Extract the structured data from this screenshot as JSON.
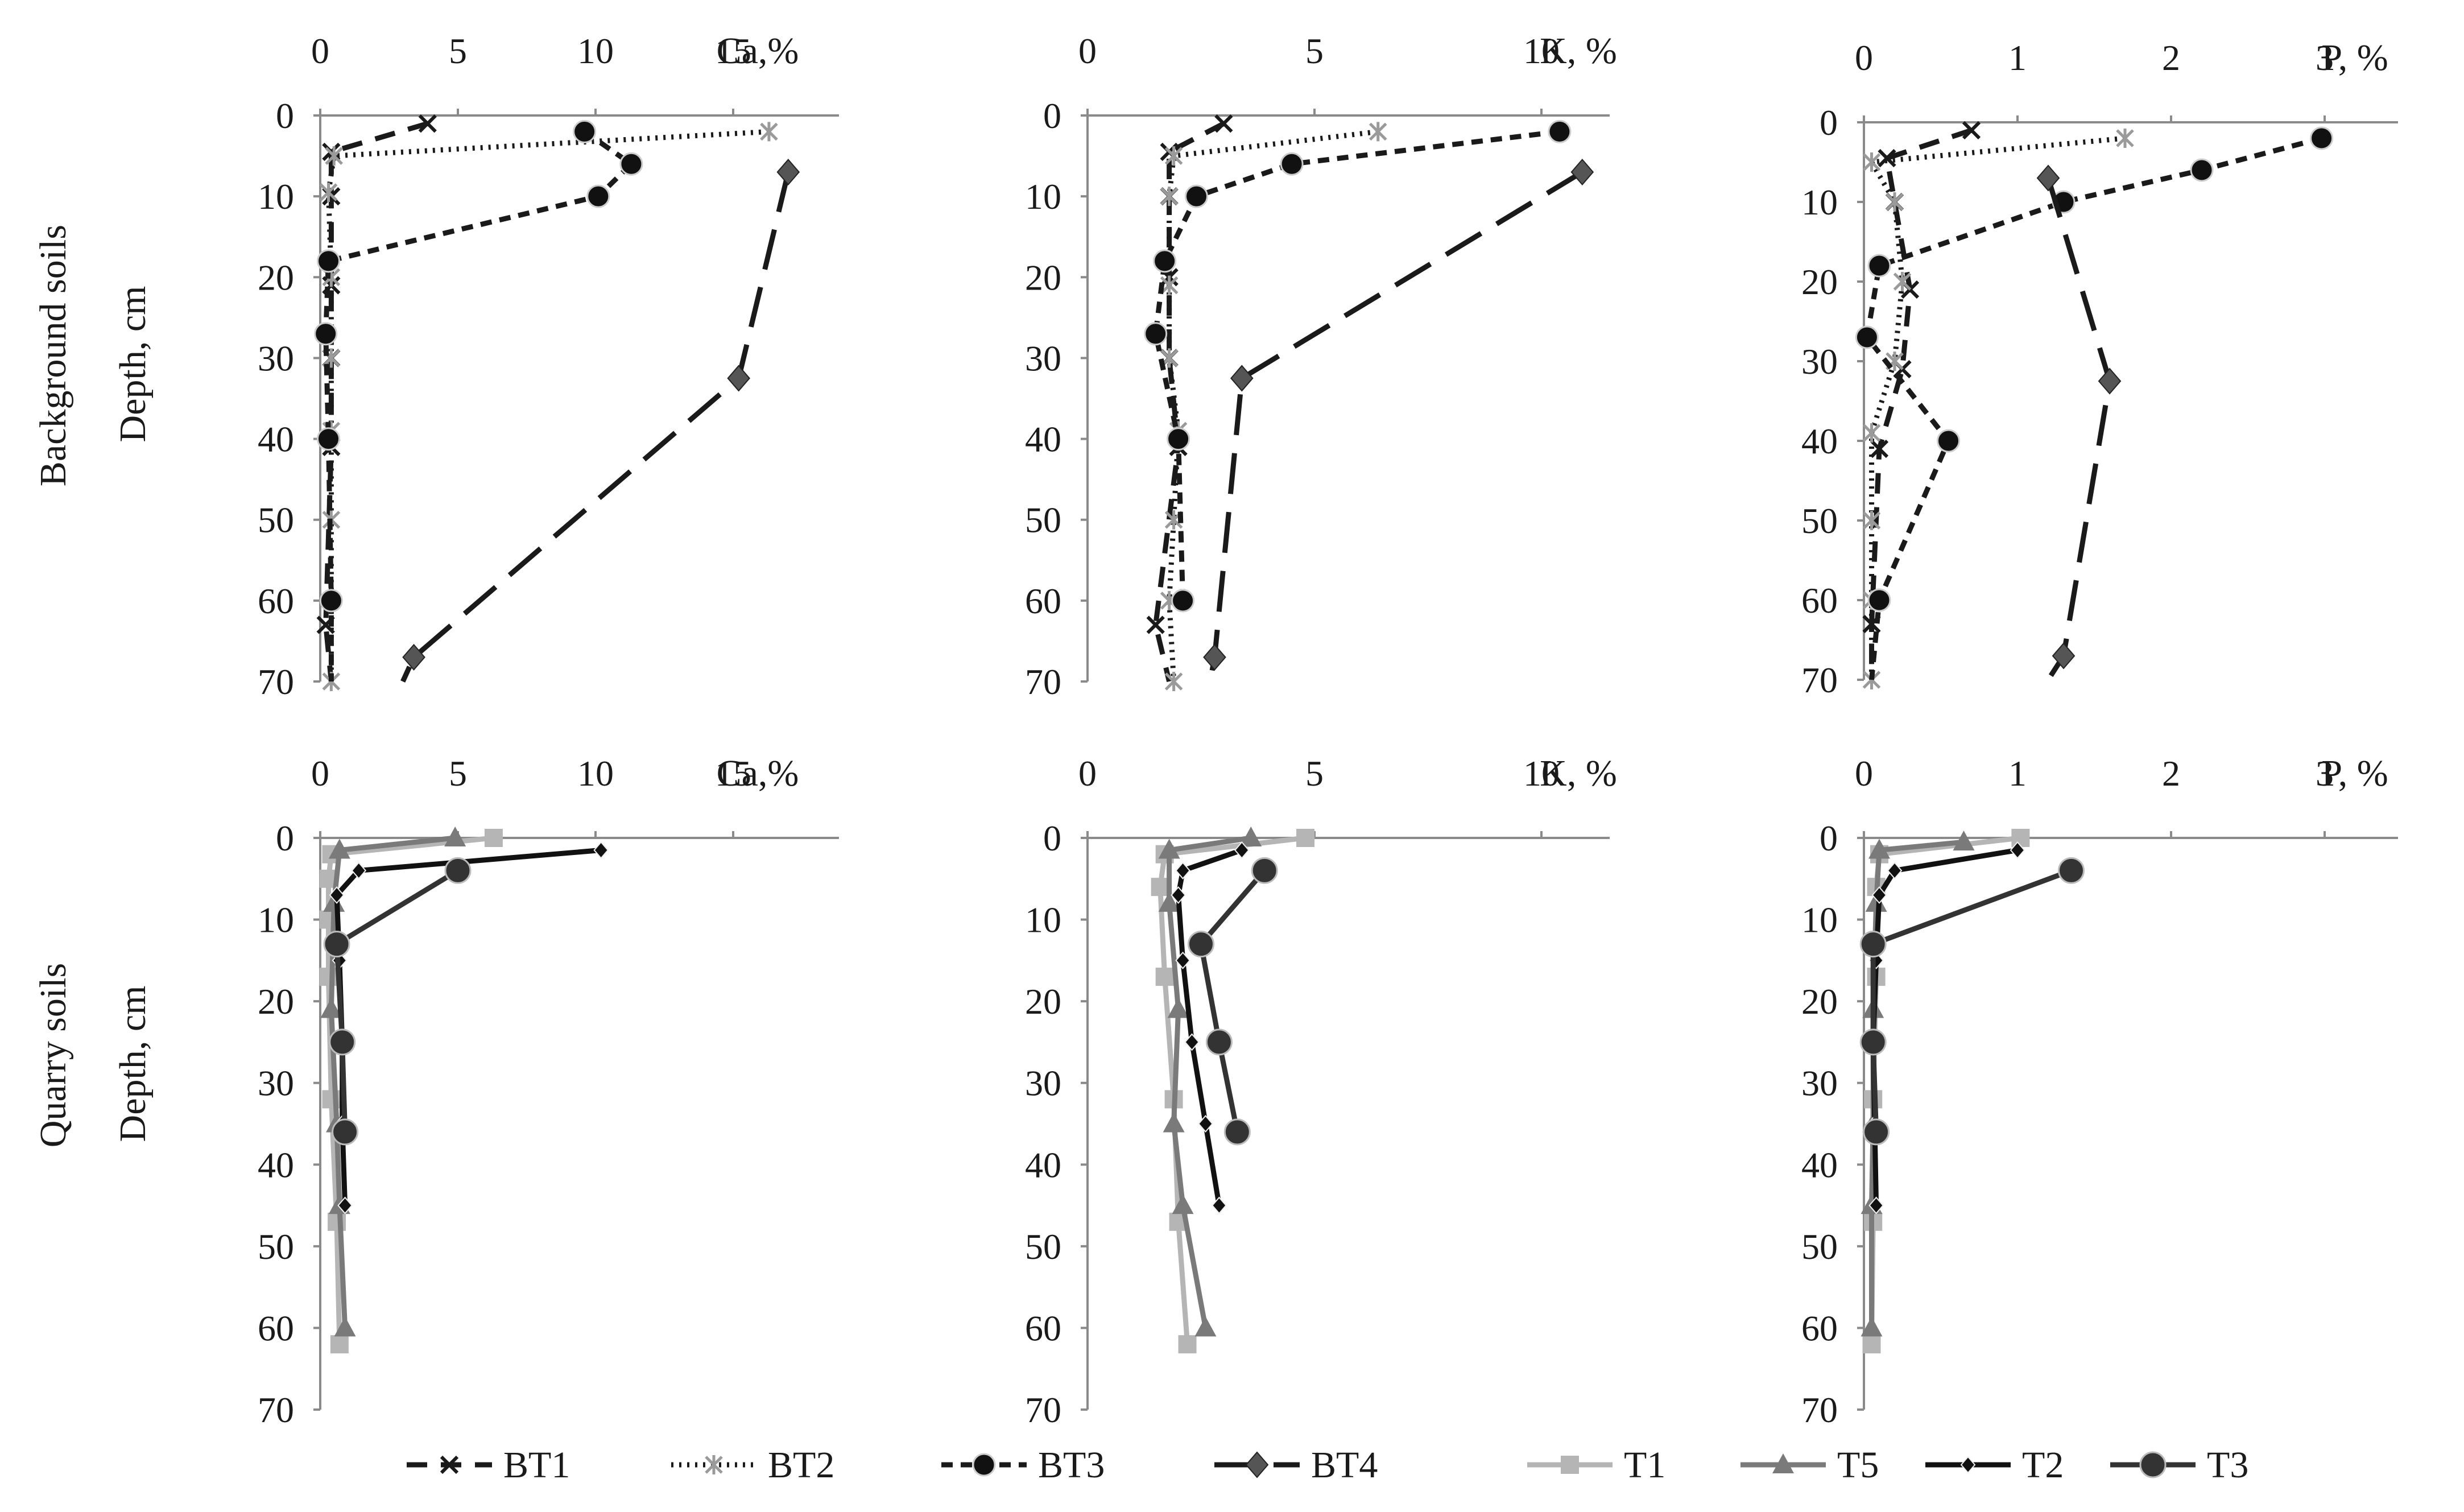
{
  "figure_type": "soil depth profiles",
  "chart_data": [
    {
      "type": "line",
      "row": "Background soils",
      "ylabel": "Depth, cm",
      "xlabel": "Ca,%",
      "xlim": [
        0,
        18
      ],
      "xticks": [
        0,
        5,
        10,
        15
      ],
      "ylim": [
        0,
        70
      ],
      "yticks": [
        0,
        10,
        20,
        30,
        40,
        50,
        60,
        70
      ],
      "series": [
        {
          "name": "BT1",
          "points": [
            [
              3.9,
              1
            ],
            [
              0.4,
              4.5
            ],
            [
              0.4,
              10
            ],
            [
              0.4,
              21
            ],
            [
              0.4,
              30
            ],
            [
              0.4,
              41
            ],
            [
              0.2,
              63
            ],
            [
              0.4,
              70
            ]
          ]
        },
        {
          "name": "BT2",
          "points": [
            [
              16.3,
              2
            ],
            [
              0.5,
              5
            ],
            [
              0.3,
              9.5
            ],
            [
              0.4,
              20
            ],
            [
              0.4,
              30
            ],
            [
              0.4,
              39
            ],
            [
              0.4,
              50
            ],
            [
              0.4,
              60
            ],
            [
              0.4,
              70
            ]
          ]
        },
        {
          "name": "BT3",
          "points": [
            [
              9.6,
              2
            ],
            [
              11.3,
              6
            ],
            [
              10.1,
              10
            ],
            [
              0.3,
              18
            ],
            [
              0.2,
              27
            ],
            [
              0.3,
              40
            ],
            [
              0.4,
              60
            ],
            [
              0.4,
              70
            ]
          ]
        },
        {
          "name": "BT4",
          "points": [
            [
              17.0,
              7
            ],
            [
              15.2,
              32.5
            ],
            [
              3.4,
              67
            ],
            [
              3.0,
              70
            ]
          ]
        }
      ]
    },
    {
      "type": "line",
      "row": "Background soils",
      "ylabel": "Depth, cm",
      "xlabel": "K, %",
      "xlim": [
        0,
        11.5
      ],
      "xticks": [
        0,
        5,
        10
      ],
      "ylim": [
        0,
        70
      ],
      "yticks": [
        0,
        10,
        20,
        30,
        40,
        50,
        60,
        70
      ],
      "series": [
        {
          "name": "BT1",
          "points": [
            [
              3.0,
              1
            ],
            [
              1.8,
              4.5
            ],
            [
              1.8,
              10
            ],
            [
              1.8,
              20
            ],
            [
              1.8,
              30
            ],
            [
              2.0,
              41
            ],
            [
              1.5,
              63
            ],
            [
              1.8,
              70
            ]
          ]
        },
        {
          "name": "BT2",
          "points": [
            [
              6.4,
              2
            ],
            [
              1.9,
              5
            ],
            [
              1.8,
              10
            ],
            [
              1.8,
              21
            ],
            [
              1.8,
              30
            ],
            [
              2.0,
              39
            ],
            [
              1.9,
              50
            ],
            [
              1.8,
              60
            ],
            [
              1.9,
              70
            ]
          ]
        },
        {
          "name": "BT3",
          "points": [
            [
              10.4,
              2
            ],
            [
              4.5,
              6
            ],
            [
              2.4,
              10
            ],
            [
              1.7,
              18
            ],
            [
              1.5,
              27
            ],
            [
              2.0,
              40
            ],
            [
              2.1,
              60
            ]
          ]
        },
        {
          "name": "BT4",
          "points": [
            [
              10.9,
              7
            ],
            [
              3.4,
              32.5
            ],
            [
              2.8,
              67
            ],
            [
              2.7,
              70
            ]
          ]
        }
      ]
    },
    {
      "type": "line",
      "row": "Background soils",
      "ylabel": "Depth, cm",
      "xlabel": "P, %",
      "xlim": [
        0,
        3.5
      ],
      "xticks": [
        0,
        1,
        2,
        3
      ],
      "ylim": [
        0,
        70
      ],
      "yticks": [
        0,
        10,
        20,
        30,
        40,
        50,
        60,
        70
      ],
      "series": [
        {
          "name": "BT1",
          "points": [
            [
              0.7,
              1
            ],
            [
              0.15,
              4.5
            ],
            [
              0.2,
              10
            ],
            [
              0.3,
              21
            ],
            [
              0.25,
              31
            ],
            [
              0.1,
              41
            ],
            [
              0.05,
              63
            ],
            [
              0.05,
              70
            ]
          ]
        },
        {
          "name": "BT2",
          "points": [
            [
              1.7,
              2
            ],
            [
              0.05,
              5
            ],
            [
              0.2,
              10
            ],
            [
              0.25,
              20
            ],
            [
              0.2,
              30
            ],
            [
              0.05,
              39
            ],
            [
              0.05,
              50
            ],
            [
              0.05,
              60
            ],
            [
              0.05,
              70
            ]
          ]
        },
        {
          "name": "BT3",
          "points": [
            [
              2.98,
              2
            ],
            [
              2.2,
              6
            ],
            [
              1.3,
              10
            ],
            [
              0.1,
              18
            ],
            [
              0.02,
              27
            ],
            [
              0.55,
              40
            ],
            [
              0.1,
              60
            ],
            [
              0.05,
              70
            ]
          ]
        },
        {
          "name": "BT4",
          "points": [
            [
              1.2,
              7
            ],
            [
              1.6,
              32.5
            ],
            [
              1.3,
              67
            ],
            [
              1.2,
              70
            ]
          ]
        }
      ]
    },
    {
      "type": "line",
      "row": "Quarry soils",
      "ylabel": "Depth, cm",
      "xlabel": "Ca,%",
      "xlim": [
        0,
        18
      ],
      "xticks": [
        0,
        5,
        10,
        15
      ],
      "ylim": [
        0,
        70
      ],
      "yticks": [
        0,
        10,
        20,
        30,
        40,
        50,
        60,
        70
      ],
      "series": [
        {
          "name": "T1",
          "points": [
            [
              6.3,
              0
            ],
            [
              0.4,
              2
            ],
            [
              0.3,
              5
            ],
            [
              0.3,
              10
            ],
            [
              0.3,
              17
            ],
            [
              0.4,
              32
            ],
            [
              0.6,
              47
            ],
            [
              0.7,
              62
            ]
          ]
        },
        {
          "name": "T5",
          "points": [
            [
              4.9,
              0
            ],
            [
              0.7,
              1.5
            ],
            [
              0.5,
              8
            ],
            [
              0.4,
              21
            ],
            [
              0.6,
              35
            ],
            [
              0.7,
              45
            ],
            [
              0.9,
              60
            ]
          ]
        },
        {
          "name": "T2",
          "points": [
            [
              10.2,
              1.5
            ],
            [
              1.4,
              4
            ],
            [
              0.6,
              7
            ],
            [
              0.7,
              15
            ],
            [
              0.8,
              25
            ],
            [
              0.8,
              35
            ],
            [
              0.9,
              45
            ]
          ]
        },
        {
          "name": "T3",
          "points": [
            [
              5.0,
              4
            ],
            [
              0.6,
              13
            ],
            [
              0.8,
              25
            ],
            [
              0.9,
              36
            ]
          ]
        }
      ]
    },
    {
      "type": "line",
      "row": "Quarry soils",
      "ylabel": "Depth, cm",
      "xlabel": "K, %",
      "xlim": [
        0,
        11.5
      ],
      "xticks": [
        0,
        5,
        10
      ],
      "ylim": [
        0,
        70
      ],
      "yticks": [
        0,
        10,
        20,
        30,
        40,
        50,
        60,
        70
      ],
      "series": [
        {
          "name": "T1",
          "points": [
            [
              4.8,
              0
            ],
            [
              1.7,
              2
            ],
            [
              1.6,
              6
            ],
            [
              1.7,
              17
            ],
            [
              1.9,
              32
            ],
            [
              2.0,
              47
            ],
            [
              2.2,
              62
            ]
          ]
        },
        {
          "name": "T5",
          "points": [
            [
              3.6,
              0
            ],
            [
              1.8,
              1.5
            ],
            [
              1.8,
              8
            ],
            [
              2.0,
              21
            ],
            [
              1.9,
              35
            ],
            [
              2.1,
              45
            ],
            [
              2.6,
              60
            ]
          ]
        },
        {
          "name": "T2",
          "points": [
            [
              3.4,
              1.5
            ],
            [
              2.1,
              4
            ],
            [
              2.0,
              7
            ],
            [
              2.1,
              15
            ],
            [
              2.3,
              25
            ],
            [
              2.6,
              35
            ],
            [
              2.9,
              45
            ]
          ]
        },
        {
          "name": "T3",
          "points": [
            [
              3.9,
              4
            ],
            [
              2.5,
              13
            ],
            [
              2.9,
              25
            ],
            [
              3.3,
              36
            ]
          ]
        }
      ]
    },
    {
      "type": "line",
      "row": "Quarry soils",
      "ylabel": "Depth, cm",
      "xlabel": "P, %",
      "xlim": [
        0,
        3.5
      ],
      "xticks": [
        0,
        1,
        2,
        3
      ],
      "ylim": [
        0,
        70
      ],
      "yticks": [
        0,
        10,
        20,
        30,
        40,
        50,
        60,
        70
      ],
      "series": [
        {
          "name": "T1",
          "points": [
            [
              1.02,
              0
            ],
            [
              0.1,
              2
            ],
            [
              0.08,
              6
            ],
            [
              0.08,
              17
            ],
            [
              0.06,
              32
            ],
            [
              0.06,
              47
            ],
            [
              0.05,
              62
            ]
          ]
        },
        {
          "name": "T5",
          "points": [
            [
              0.65,
              0.5
            ],
            [
              0.1,
              1.5
            ],
            [
              0.08,
              8
            ],
            [
              0.06,
              21
            ],
            [
              0.06,
              35
            ],
            [
              0.05,
              45
            ],
            [
              0.05,
              60
            ]
          ]
        },
        {
          "name": "T2",
          "points": [
            [
              1.0,
              1.5
            ],
            [
              0.2,
              4
            ],
            [
              0.1,
              7
            ],
            [
              0.08,
              15
            ],
            [
              0.06,
              25
            ],
            [
              0.07,
              35
            ],
            [
              0.08,
              45
            ]
          ]
        },
        {
          "name": "T3",
          "points": [
            [
              1.35,
              4
            ],
            [
              0.06,
              13
            ],
            [
              0.06,
              25
            ],
            [
              0.08,
              36
            ]
          ]
        }
      ]
    }
  ],
  "row_titles": [
    "Background soils",
    "Quarry soils"
  ],
  "depth_label": "Depth, cm",
  "legend": [
    {
      "name": "BT1"
    },
    {
      "name": "BT2"
    },
    {
      "name": "BT3"
    },
    {
      "name": "BT4"
    },
    {
      "name": "T1"
    },
    {
      "name": "T5"
    },
    {
      "name": "T2"
    },
    {
      "name": "T3"
    }
  ],
  "styles": {
    "BT1": {
      "color": "#1a1a1a",
      "dash": "36 24",
      "marker": "x-cross",
      "marker_color": "#1a1a1a"
    },
    "BT2": {
      "color": "#1a1a1a",
      "dash": "4 10",
      "marker": "asterisk",
      "marker_color": "#9a9a9a"
    },
    "BT3": {
      "color": "#1a1a1a",
      "dash": "20 14",
      "marker": "circle",
      "marker_color": "#111111"
    },
    "BT4": {
      "color": "#1a1a1a",
      "dash": "72 32",
      "marker": "diamond",
      "marker_color": "#555555"
    },
    "T1": {
      "color": "#b5b5b5",
      "dash": "",
      "marker": "square",
      "marker_color": "#b5b5b5"
    },
    "T5": {
      "color": "#7a7a7a",
      "dash": "",
      "marker": "triangle",
      "marker_color": "#7a7a7a"
    },
    "T2": {
      "color": "#111111",
      "dash": "",
      "marker": "small-diamond",
      "marker_color": "#111111"
    },
    "T3": {
      "color": "#333333",
      "dash": "",
      "marker": "big-circle",
      "marker_color": "#333333"
    }
  }
}
